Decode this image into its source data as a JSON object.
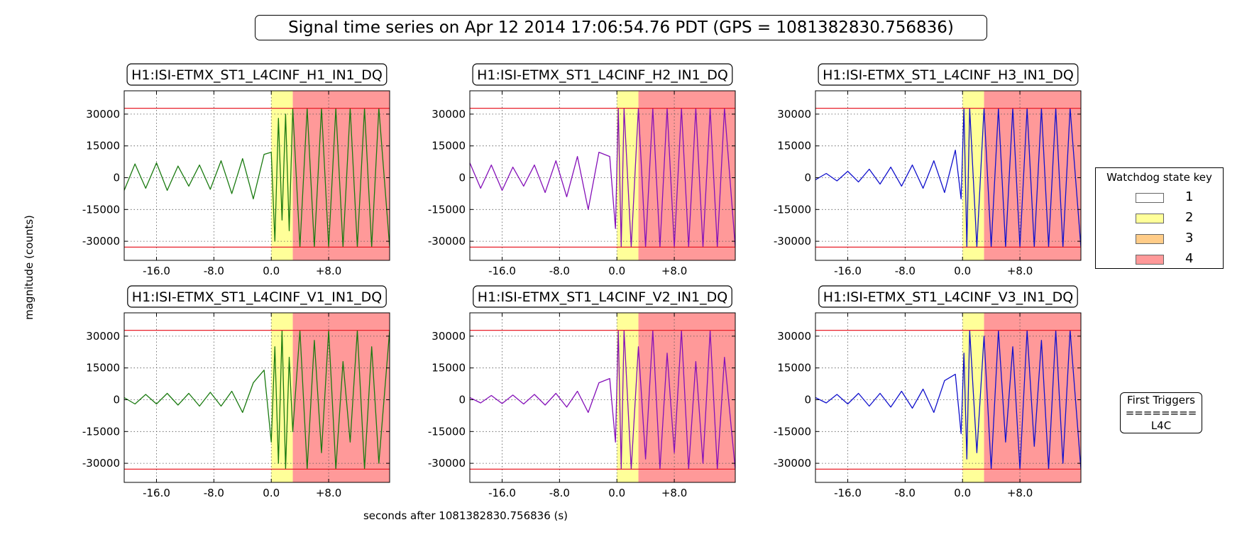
{
  "figure": {
    "title": "Signal time series on Apr 12 2014 17:06:54.76 PDT (GPS = 1081382830.756836)",
    "ylabel": "magnitude (counts)",
    "xlabel": "seconds after 1081382830.756836 (s)"
  },
  "legend": {
    "title": "Watchdog state key",
    "items": [
      {
        "label": "1",
        "color": "#ffffff"
      },
      {
        "label": "2",
        "color": "#ffff99"
      },
      {
        "label": "3",
        "color": "#ffcc88"
      },
      {
        "label": "4",
        "color": "#ff9999"
      }
    ]
  },
  "first_triggers": {
    "title": "First Triggers",
    "separator": "========",
    "value": "L4C"
  },
  "chart_data": [
    {
      "type": "line",
      "title": "H1:ISI-ETMX_ST1_L4CINF_H1_IN1_DQ",
      "xlim": [
        -20.5,
        16.5
      ],
      "ylim": [
        -39000,
        41000
      ],
      "xticks": [
        -16,
        -8,
        0,
        8
      ],
      "xtick_labels": [
        "-16.0",
        "-8.0",
        "0.0",
        "+8.0"
      ],
      "yticks": [
        30000,
        15000,
        0,
        -15000,
        -30000
      ],
      "ytick_labels": [
        "30000",
        "15000",
        "0",
        "-15000",
        "-30000"
      ],
      "thresholds": [
        32767,
        -32768
      ],
      "states": [
        {
          "state": 2,
          "x0": 0.0,
          "x1": 3.0
        },
        {
          "state": 4,
          "x0": 3.0,
          "x1": 16.5
        }
      ],
      "series": [
        {
          "color": "#1a7a10",
          "x": [
            -20.5,
            -19.0,
            -17.5,
            -16.0,
            -14.5,
            -13.0,
            -11.5,
            -10.0,
            -8.5,
            -7.0,
            -5.5,
            -4.0,
            -2.5,
            -1.0,
            0.0,
            0.5,
            1.0,
            1.5,
            2.0,
            2.5,
            3.0,
            4.0,
            5.0,
            6.0,
            7.0,
            8.0,
            9.0,
            10.0,
            11.0,
            12.0,
            13.0,
            14.0,
            15.0,
            16.5
          ],
          "y": [
            -6000,
            6500,
            -5000,
            7000,
            -6000,
            5500,
            -4000,
            6000,
            -5500,
            8000,
            -7500,
            9000,
            -10000,
            11000,
            12000,
            -30000,
            28000,
            -20000,
            30000,
            -25000,
            32767,
            -32768,
            32767,
            -32768,
            32767,
            -32768,
            32767,
            -32768,
            32767,
            -32768,
            32767,
            -32768,
            32767,
            -32768
          ]
        }
      ]
    },
    {
      "type": "line",
      "title": "H1:ISI-ETMX_ST1_L4CINF_H2_IN1_DQ",
      "xlim": [
        -20.5,
        16.5
      ],
      "ylim": [
        -39000,
        41000
      ],
      "xticks": [
        -16,
        -8,
        0,
        8
      ],
      "xtick_labels": [
        "-16.0",
        "-8.0",
        "0.0",
        "+8.0"
      ],
      "yticks": [
        30000,
        15000,
        0,
        -15000,
        -30000
      ],
      "ytick_labels": [
        "30000",
        "15000",
        "0",
        "-15000",
        "-30000"
      ],
      "thresholds": [
        32767,
        -32768
      ],
      "states": [
        {
          "state": 2,
          "x0": 0.0,
          "x1": 3.0
        },
        {
          "state": 4,
          "x0": 3.0,
          "x1": 16.5
        }
      ],
      "series": [
        {
          "color": "#8410b8",
          "x": [
            -20.5,
            -19.0,
            -17.5,
            -16.0,
            -14.5,
            -13.0,
            -11.5,
            -10.0,
            -8.5,
            -7.0,
            -5.5,
            -4.0,
            -2.5,
            -1.0,
            -0.2,
            0.2,
            0.6,
            1.0,
            2.0,
            3.0,
            4.0,
            5.0,
            6.0,
            7.0,
            8.0,
            9.0,
            10.0,
            11.0,
            12.0,
            13.0,
            14.0,
            15.0,
            16.5
          ],
          "y": [
            7000,
            -5000,
            6000,
            -6000,
            5000,
            -4000,
            6000,
            -7000,
            8000,
            -9000,
            10000,
            -15000,
            12000,
            10000,
            -24000,
            32767,
            -32768,
            32767,
            -32768,
            32767,
            -32768,
            32767,
            -32768,
            32767,
            -32768,
            32767,
            -32768,
            32767,
            -32768,
            32767,
            -32768,
            32767,
            -32768
          ]
        }
      ]
    },
    {
      "type": "line",
      "title": "H1:ISI-ETMX_ST1_L4CINF_H3_IN1_DQ",
      "xlim": [
        -20.5,
        16.5
      ],
      "ylim": [
        -39000,
        41000
      ],
      "xticks": [
        -16,
        -8,
        0,
        8
      ],
      "xtick_labels": [
        "-16.0",
        "-8.0",
        "0.0",
        "+8.0"
      ],
      "yticks": [
        30000,
        15000,
        0,
        -15000,
        -30000
      ],
      "ytick_labels": [
        "30000",
        "15000",
        "0",
        "-15000",
        "-30000"
      ],
      "thresholds": [
        32767,
        -32768
      ],
      "states": [
        {
          "state": 2,
          "x0": 0.0,
          "x1": 3.0
        },
        {
          "state": 4,
          "x0": 3.0,
          "x1": 16.5
        }
      ],
      "series": [
        {
          "color": "#1010cc",
          "x": [
            -20.5,
            -19.0,
            -17.5,
            -16.0,
            -14.5,
            -13.0,
            -11.5,
            -10.0,
            -8.5,
            -7.0,
            -5.5,
            -4.0,
            -2.5,
            -1.0,
            -0.2,
            0.2,
            0.6,
            1.0,
            2.0,
            3.0,
            4.0,
            5.0,
            6.0,
            7.0,
            8.0,
            9.0,
            10.0,
            11.0,
            12.0,
            13.0,
            14.0,
            15.0,
            16.5
          ],
          "y": [
            -1000,
            2000,
            -1500,
            3000,
            -2000,
            4000,
            -3000,
            5000,
            -4000,
            6000,
            -5000,
            8000,
            -7000,
            13000,
            -10000,
            32767,
            -32768,
            32767,
            -32768,
            32767,
            -32768,
            32767,
            -32768,
            32767,
            -32768,
            32767,
            -32768,
            32767,
            -32768,
            32767,
            -32768,
            32767,
            -32768
          ]
        }
      ]
    },
    {
      "type": "line",
      "title": "H1:ISI-ETMX_ST1_L4CINF_V1_IN1_DQ",
      "xlim": [
        -20.5,
        16.5
      ],
      "ylim": [
        -39000,
        41000
      ],
      "xticks": [
        -16,
        -8,
        0,
        8
      ],
      "xtick_labels": [
        "-16.0",
        "-8.0",
        "0.0",
        "+8.0"
      ],
      "yticks": [
        30000,
        15000,
        0,
        -15000,
        -30000
      ],
      "ytick_labels": [
        "30000",
        "15000",
        "0",
        "-15000",
        "-30000"
      ],
      "thresholds": [
        32767,
        -32768
      ],
      "states": [
        {
          "state": 2,
          "x0": 0.0,
          "x1": 3.0
        },
        {
          "state": 4,
          "x0": 3.0,
          "x1": 16.5
        }
      ],
      "series": [
        {
          "color": "#1a7a10",
          "x": [
            -20.5,
            -19.0,
            -17.5,
            -16.0,
            -14.5,
            -13.0,
            -11.5,
            -10.0,
            -8.5,
            -7.0,
            -5.5,
            -4.0,
            -2.5,
            -1.0,
            0.0,
            0.5,
            1.0,
            1.5,
            2.0,
            2.5,
            3.0,
            4.0,
            5.0,
            6.0,
            7.0,
            8.0,
            9.0,
            10.0,
            11.0,
            12.0,
            13.0,
            14.0,
            15.0,
            16.5
          ],
          "y": [
            1000,
            -2000,
            2500,
            -2000,
            3000,
            -2500,
            3000,
            -3000,
            3500,
            -3000,
            4000,
            -6000,
            8000,
            14000,
            -20000,
            25000,
            -30000,
            32767,
            -32768,
            20000,
            -15000,
            32767,
            -32768,
            28000,
            -25000,
            32767,
            -32768,
            18000,
            -20000,
            32767,
            -32768,
            25000,
            -30000,
            32767
          ]
        }
      ]
    },
    {
      "type": "line",
      "title": "H1:ISI-ETMX_ST1_L4CINF_V2_IN1_DQ",
      "xlim": [
        -20.5,
        16.5
      ],
      "ylim": [
        -39000,
        41000
      ],
      "xticks": [
        -16,
        -8,
        0,
        8
      ],
      "xtick_labels": [
        "-16.0",
        "-8.0",
        "0.0",
        "+8.0"
      ],
      "yticks": [
        30000,
        15000,
        0,
        -15000,
        -30000
      ],
      "ytick_labels": [
        "30000",
        "15000",
        "0",
        "-15000",
        "-30000"
      ],
      "thresholds": [
        32767,
        -32768
      ],
      "states": [
        {
          "state": 2,
          "x0": 0.0,
          "x1": 3.0
        },
        {
          "state": 4,
          "x0": 3.0,
          "x1": 16.5
        }
      ],
      "series": [
        {
          "color": "#8410b8",
          "x": [
            -20.5,
            -19.0,
            -17.5,
            -16.0,
            -14.5,
            -13.0,
            -11.5,
            -10.0,
            -8.5,
            -7.0,
            -5.5,
            -4.0,
            -2.5,
            -1.0,
            -0.2,
            0.2,
            0.6,
            1.0,
            2.0,
            3.0,
            4.0,
            5.0,
            6.0,
            7.0,
            8.0,
            9.0,
            10.0,
            11.0,
            12.0,
            13.0,
            14.0,
            15.0,
            16.5
          ],
          "y": [
            1000,
            -1500,
            2000,
            -1800,
            2200,
            -2000,
            2500,
            -2500,
            3000,
            -3500,
            4000,
            -6000,
            8000,
            10000,
            -20000,
            32767,
            -32768,
            32767,
            -32768,
            25000,
            -28000,
            32767,
            -32768,
            22000,
            -25000,
            32767,
            -32768,
            18000,
            -30000,
            32767,
            -32768,
            20000,
            -32768
          ]
        }
      ]
    },
    {
      "type": "line",
      "title": "H1:ISI-ETMX_ST1_L4CINF_V3_IN1_DQ",
      "xlim": [
        -20.5,
        16.5
      ],
      "ylim": [
        -39000,
        41000
      ],
      "xticks": [
        -16,
        -8,
        0,
        8
      ],
      "xtick_labels": [
        "-16.0",
        "-8.0",
        "0.0",
        "+8.0"
      ],
      "yticks": [
        30000,
        15000,
        0,
        -15000,
        -30000
      ],
      "ytick_labels": [
        "30000",
        "15000",
        "0",
        "-15000",
        "-30000"
      ],
      "thresholds": [
        32767,
        -32768
      ],
      "states": [
        {
          "state": 2,
          "x0": 0.0,
          "x1": 3.0
        },
        {
          "state": 4,
          "x0": 3.0,
          "x1": 16.5
        }
      ],
      "series": [
        {
          "color": "#1010cc",
          "x": [
            -20.5,
            -19.0,
            -17.5,
            -16.0,
            -14.5,
            -13.0,
            -11.5,
            -10.0,
            -8.5,
            -7.0,
            -5.5,
            -4.0,
            -2.5,
            -1.0,
            -0.2,
            0.2,
            0.6,
            1.0,
            2.0,
            3.0,
            4.0,
            5.0,
            6.0,
            7.0,
            8.0,
            9.0,
            10.0,
            11.0,
            12.0,
            13.0,
            14.0,
            15.0,
            16.5
          ],
          "y": [
            1000,
            -1500,
            2500,
            -2000,
            3000,
            -3000,
            3000,
            -3500,
            4000,
            -4000,
            5000,
            -6000,
            9000,
            12000,
            -16000,
            22000,
            -28000,
            32767,
            -25000,
            30000,
            -32768,
            32767,
            -20000,
            25000,
            -32768,
            32767,
            -22000,
            28000,
            -32768,
            32767,
            -30000,
            32767,
            -32768
          ]
        }
      ]
    }
  ]
}
